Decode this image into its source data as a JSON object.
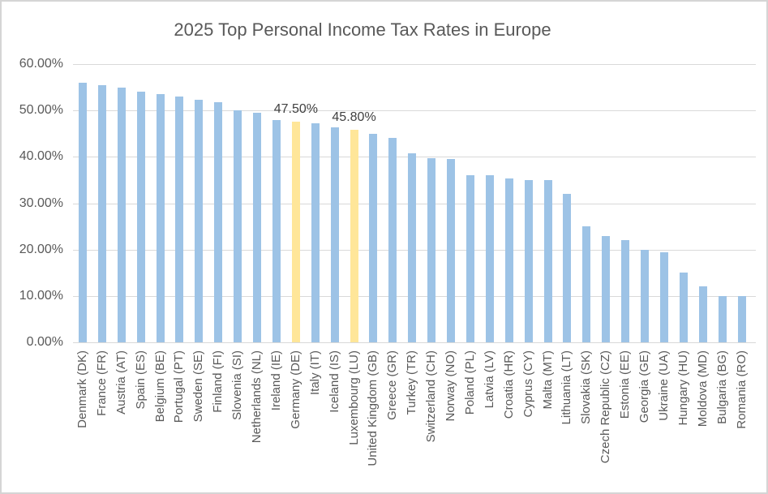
{
  "colors": {
    "bar_fill": "#9DC3E6",
    "highlight_fill": "#FFE699",
    "gridline": "#D9D9D9",
    "axis_text": "#595959",
    "title_text": "#595959",
    "data_label_text": "#404040",
    "frame_border": "#D5D5D5",
    "background": "#FFFFFF"
  },
  "chart_data": {
    "type": "bar",
    "title": "2025 Top Personal Income Tax Rates in Europe",
    "xlabel": "",
    "ylabel": "",
    "ylim": [
      0,
      60
    ],
    "grid": true,
    "legend": "none",
    "y_ticks": [
      {
        "value": 60,
        "label": "60.00%"
      },
      {
        "value": 50,
        "label": "50.00%"
      },
      {
        "value": 40,
        "label": "40.00%"
      },
      {
        "value": 30,
        "label": "30.00%"
      },
      {
        "value": 20,
        "label": "20.00%"
      },
      {
        "value": 10,
        "label": "10.00%"
      },
      {
        "value": 0,
        "label": "0.00%"
      }
    ],
    "categories": [
      "Denmark (DK)",
      "France (FR)",
      "Austria (AT)",
      "Spain (ES)",
      "Belgium (BE)",
      "Portugal (PT)",
      "Sweden (SE)",
      "Finland (FI)",
      "Slovenia (SI)",
      "Netherlands (NL)",
      "Ireland (IE)",
      "Germany (DE)",
      "Italy (IT)",
      "Iceland (IS)",
      "Luxembourg (LU)",
      "United Kingdom (GB)",
      "Greece (GR)",
      "Turkey (TR)",
      "Switzerland (CH)",
      "Norway (NO)",
      "Poland (PL)",
      "Latvia (LV)",
      "Croatia (HR)",
      "Cyprus (CY)",
      "Malta (MT)",
      "Lithuania (LT)",
      "Slovakia (SK)",
      "Czech Republic (CZ)",
      "Estonia (EE)",
      "Georgia (GE)",
      "Ukraine (UA)",
      "Hungary (HU)",
      "Moldova (MD)",
      "Bulgaria (BG)",
      "Romania (RO)"
    ],
    "values": [
      55.9,
      55.4,
      55.0,
      54.0,
      53.5,
      53.0,
      52.3,
      51.7,
      50.0,
      49.5,
      48.0,
      47.5,
      47.2,
      46.3,
      45.8,
      45.0,
      44.0,
      40.8,
      39.7,
      39.6,
      36.0,
      36.0,
      35.4,
      35.0,
      35.0,
      32.0,
      25.0,
      23.0,
      22.0,
      20.0,
      19.5,
      15.0,
      12.0,
      10.0,
      10.0
    ],
    "highlight_indices": [
      11,
      14
    ],
    "data_labels": [
      {
        "index": 11,
        "text": "47.50%"
      },
      {
        "index": 14,
        "text": "45.80%"
      }
    ]
  }
}
